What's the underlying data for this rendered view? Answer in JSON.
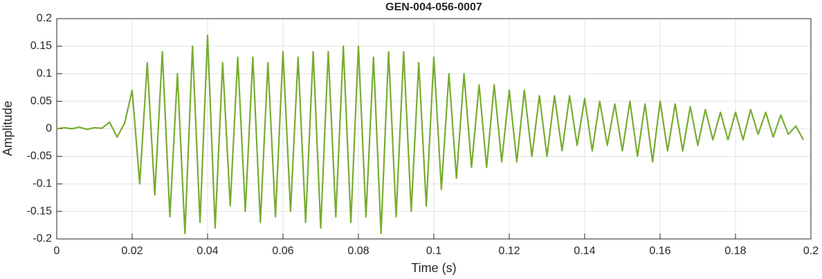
{
  "chart_data": {
    "type": "line",
    "title": "GEN-004-056-0007",
    "xlabel": "Time (s)",
    "ylabel": "Amplitude",
    "x": [
      0,
      0.002,
      0.004,
      0.006,
      0.008,
      0.01,
      0.012,
      0.014,
      0.016,
      0.018,
      0.02,
      0.022,
      0.024,
      0.026,
      0.028,
      0.03,
      0.032,
      0.034,
      0.036,
      0.038,
      0.04,
      0.042,
      0.044,
      0.046,
      0.048,
      0.05,
      0.052,
      0.054,
      0.056,
      0.058,
      0.06,
      0.062,
      0.064,
      0.066,
      0.068,
      0.07,
      0.072,
      0.074,
      0.076,
      0.078,
      0.08,
      0.082,
      0.084,
      0.086,
      0.088,
      0.09,
      0.092,
      0.094,
      0.096,
      0.098,
      0.1,
      0.102,
      0.104,
      0.106,
      0.108,
      0.11,
      0.112,
      0.114,
      0.116,
      0.118,
      0.12,
      0.122,
      0.124,
      0.126,
      0.128,
      0.13,
      0.132,
      0.134,
      0.136,
      0.138,
      0.14,
      0.142,
      0.144,
      0.146,
      0.148,
      0.15,
      0.152,
      0.154,
      0.156,
      0.158,
      0.16,
      0.162,
      0.164,
      0.166,
      0.168,
      0.17,
      0.172,
      0.174,
      0.176,
      0.178,
      0.18,
      0.182,
      0.184,
      0.186,
      0.188,
      0.19,
      0.192,
      0.194,
      0.196,
      0.198
    ],
    "series": [
      {
        "name": "Amplitude",
        "color": "#77ac30",
        "values": [
          0,
          0.002,
          0,
          0.003,
          -0.001,
          0.002,
          0.001,
          0.012,
          -0.015,
          0.01,
          0.07,
          -0.1,
          0.12,
          -0.12,
          0.14,
          -0.16,
          0.1,
          -0.19,
          0.15,
          -0.17,
          0.17,
          -0.18,
          0.12,
          -0.14,
          0.13,
          -0.15,
          0.13,
          -0.17,
          0.12,
          -0.16,
          0.14,
          -0.15,
          0.13,
          -0.17,
          0.14,
          -0.18,
          0.14,
          -0.16,
          0.15,
          -0.17,
          0.15,
          -0.16,
          0.13,
          -0.19,
          0.14,
          -0.16,
          0.14,
          -0.15,
          0.12,
          -0.14,
          0.13,
          -0.11,
          0.1,
          -0.09,
          0.1,
          -0.07,
          0.08,
          -0.07,
          0.08,
          -0.06,
          0.07,
          -0.06,
          0.07,
          -0.05,
          0.06,
          -0.05,
          0.06,
          -0.04,
          0.06,
          -0.03,
          0.055,
          -0.04,
          0.05,
          -0.03,
          0.045,
          -0.04,
          0.05,
          -0.05,
          0.045,
          -0.06,
          0.05,
          -0.04,
          0.045,
          -0.04,
          0.04,
          -0.03,
          0.035,
          -0.02,
          0.03,
          -0.02,
          0.03,
          -0.02,
          0.035,
          -0.01,
          0.03,
          -0.015,
          0.025,
          -0.01,
          0.005,
          -0.02
        ]
      }
    ],
    "xlim": [
      0,
      0.2
    ],
    "xticks": [
      0,
      0.02,
      0.04,
      0.06,
      0.08,
      0.1,
      0.12,
      0.14,
      0.16,
      0.18,
      0.2
    ],
    "ylim": [
      -0.2,
      0.2
    ],
    "yticks": [
      -0.2,
      -0.15,
      -0.1,
      -0.05,
      0,
      0.05,
      0.1,
      0.15,
      0.2
    ],
    "grid": true
  }
}
